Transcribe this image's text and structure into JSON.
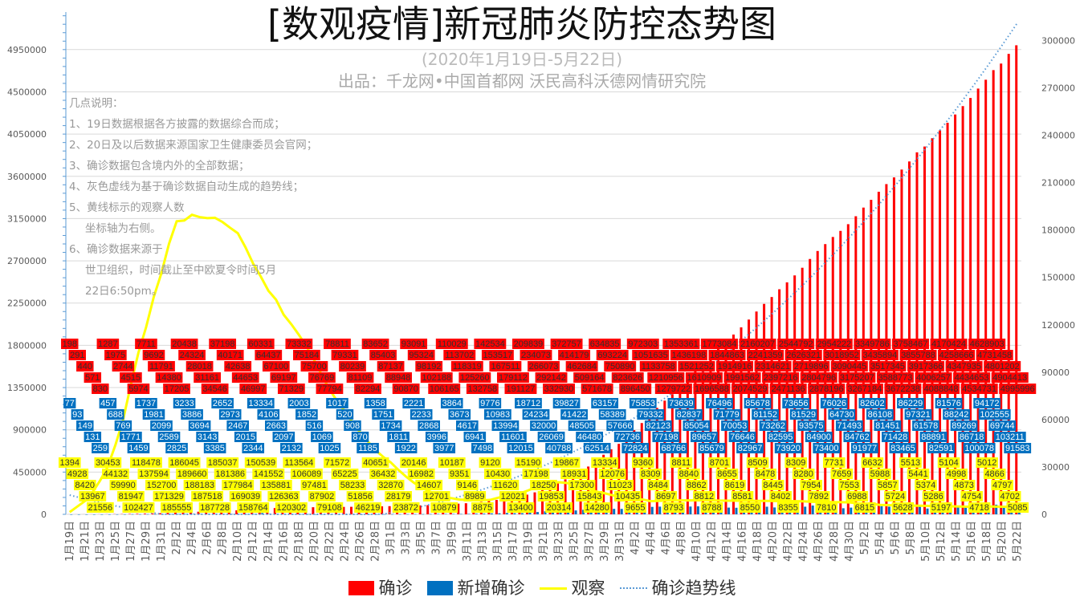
{
  "chart_data": {
    "type": "bar",
    "title": "[数观疫情]新冠肺炎防控态势图",
    "subtitle": "(2020年1月19日-5月22日)",
    "source": "出品：千龙网•中国首都网   沃民高科沃德网情研究院",
    "notes": [
      "几点说明：",
      "1、19日数据根据各方披露的数据综合而成；",
      "2、20日及以后数据来源国家卫生健康委员会官网；",
      "3、确诊数据包含境内外的全部数据；",
      "4、灰色虚线为基于确诊数据自动生成的趋势线；",
      "5、黄线标示的观察人数",
      "坐标轴为右侧。",
      "6、确诊数据来源于",
      "世卫组织，时间截止至中欧夏令时间5月",
      "22日6:50pm。"
    ],
    "start_date": "2020-01-19",
    "left_axis": {
      "min": 0,
      "max": 5350000,
      "step": 450000,
      "ticks": [
        "0",
        "450000",
        "900000",
        "1350000",
        "1800000",
        "2250000",
        "2700000",
        "3150000",
        "3600000",
        "4050000",
        "4500000",
        "4950000"
      ]
    },
    "right_axis": {
      "min": 0,
      "max": 318000,
      "step": 30000,
      "ticks": [
        "0",
        "30000",
        "60000",
        "90000",
        "120000",
        "150000",
        "180000",
        "210000",
        "240000",
        "270000",
        "300000"
      ]
    },
    "grid": true,
    "legend_position": "bottom",
    "series": [
      {
        "name": "确诊",
        "type": "bar",
        "axis": "left",
        "color": "#ff0000",
        "values": [
          198,
          291,
          440,
          571,
          830,
          1287,
          1975,
          2744,
          4515,
          5974,
          7711,
          9692,
          11791,
          14380,
          17205,
          20438,
          24324,
          28018,
          31161,
          34546,
          37198,
          40171,
          42638,
          44653,
          46997,
          60331,
          64437,
          67100,
          69197,
          71329,
          73332,
          75184,
          75700,
          76769,
          77794,
          78811,
          79331,
          80239,
          81109,
          82294,
          83652,
          85403,
          87137,
          88948,
          90870,
          93091,
          95324,
          98192,
          102188,
          106165,
          110029,
          113702,
          118319,
          125260,
          132758,
          142534,
          153517,
          167511,
          179112,
          191127,
          209839,
          234073,
          266073,
          292142,
          332930,
          372757,
          414179,
          462684,
          509164,
          571678,
          634835,
          693224,
          750890,
          823626,
          896450,
          972303,
          1051635,
          1133758,
          1210956,
          1279722,
          1353361,
          1436198,
          1521252,
          1610909,
          1696588,
          1773084,
          1844863,
          1914916,
          1991562,
          2074529,
          2160207,
          2241359,
          2314621,
          2397216,
          2471136,
          2544792,
          2626321,
          2719896,
          2804796,
          2878196,
          2954222,
          3018952,
          3090445,
          3175207,
          3267184,
          3349786,
          3435894,
          3517345,
          3588773,
          3672238,
          3758467,
          3855788,
          3917366,
          4006257,
          4088848,
          4170424,
          4258666,
          4347935,
          4434653,
          4534731,
          4628903,
          4731458,
          4801202,
          4904413,
          4995996
        ]
      },
      {
        "name": "新增确诊",
        "type": "bar",
        "axis": "left",
        "color": "#0070c0",
        "values": [
          77,
          93,
          149,
          131,
          259,
          457,
          688,
          769,
          1771,
          1459,
          1737,
          1981,
          2099,
          2589,
          2825,
          3233,
          3886,
          3694,
          3143,
          3385,
          2652,
          2973,
          2467,
          2015,
          2344,
          13334,
          4106,
          2663,
          2097,
          2132,
          2003,
          1852,
          516,
          1069,
          1025,
          1017,
          520,
          908,
          870,
          1185,
          1358,
          1751,
          1734,
          1811,
          1922,
          2221,
          2233,
          2868,
          3996,
          3977,
          3864,
          3673,
          4617,
          6941,
          7498,
          9776,
          10983,
          13994,
          11601,
          12015,
          18712,
          24234,
          32000,
          26069,
          40788,
          39827,
          41422,
          48505,
          46480,
          62514,
          63157,
          58389,
          57666,
          72736,
          72824,
          75853,
          79332,
          82123,
          77198,
          68766,
          73639,
          82837,
          85054,
          89657,
          85679,
          76496,
          71779,
          70053,
          76646,
          82967,
          85678,
          81152,
          73262,
          82595,
          73920,
          73656,
          81529,
          93575,
          84900,
          73400,
          76026,
          64730,
          71493,
          84762,
          91977,
          82602,
          86108,
          81451,
          71428,
          83465,
          86229,
          97321,
          61578,
          88891,
          82591,
          81576,
          88242,
          89269,
          86718,
          100078,
          94172,
          102555,
          69744,
          103211,
          91583
        ]
      },
      {
        "name": "观察",
        "type": "line",
        "axis": "right",
        "color": "#ffff00",
        "values": [
          1394,
          4928,
          8420,
          13967,
          21556,
          30453,
          44132,
          59990,
          81947,
          102427,
          118478,
          137594,
          152700,
          171329,
          185555,
          186045,
          189660,
          188183,
          187518,
          187728,
          185037,
          181386,
          177984,
          169039,
          158764,
          150539,
          141552,
          135881,
          126363,
          120302,
          113564,
          106089,
          97481,
          87902,
          79108,
          71572,
          65225,
          58233,
          51856,
          46219,
          40651,
          36432,
          32870,
          28179,
          23872,
          20146,
          16982,
          14607,
          12701,
          10879,
          10187,
          9351,
          9146,
          8989,
          8875,
          9120,
          10430,
          11620,
          12021,
          13400,
          15190,
          17198,
          18250,
          19853,
          20314,
          19867,
          18931,
          17300,
          15843,
          14280,
          13334,
          12076,
          11023,
          10435,
          9655,
          9360,
          8309,
          8484,
          8697,
          8793,
          8811,
          8840,
          8862,
          8812,
          8788,
          8701,
          8655,
          8619,
          8581,
          8550,
          8509,
          8478,
          8445,
          8402,
          8355,
          8309,
          8280,
          7954,
          7892,
          7810,
          7731,
          7659,
          7553,
          6988,
          6815,
          6632,
          5988,
          5857,
          5724,
          5628,
          5513,
          5441,
          5374,
          5286,
          5197,
          5104,
          4998,
          4873,
          4754,
          4718,
          5012,
          4866,
          4797,
          4702,
          5085
        ]
      },
      {
        "name": "确诊趋势线",
        "type": "trendline",
        "axis": "left",
        "color": "#5b9bd5",
        "of": "确诊",
        "fit": "polynomial"
      }
    ]
  }
}
